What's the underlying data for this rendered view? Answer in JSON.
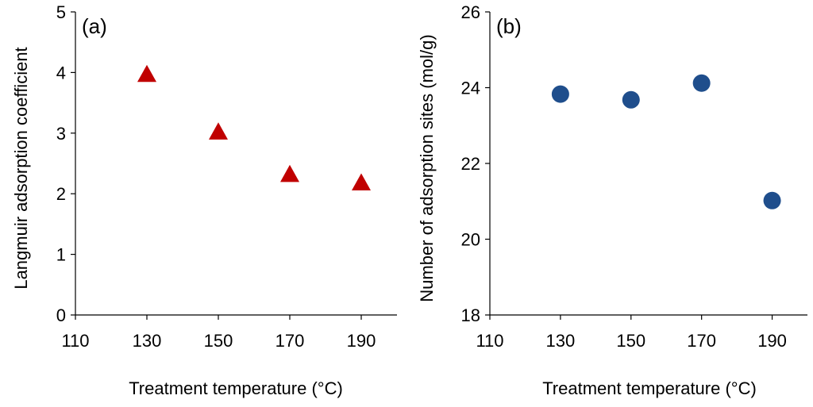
{
  "chart_data": [
    {
      "type": "scatter",
      "panel_label": "(a)",
      "xlabel": "Treatment temperature (°C)",
      "ylabel": "Langmuir adsorption coefficient",
      "xlim": [
        110,
        200
      ],
      "ylim": [
        0,
        5
      ],
      "xticks": [
        110,
        130,
        150,
        170,
        190
      ],
      "yticks": [
        0,
        1,
        2,
        3,
        4,
        5
      ],
      "marker": "triangle",
      "color": "#c00000",
      "x": [
        130,
        150,
        170,
        190
      ],
      "y": [
        3.97,
        3.02,
        2.32,
        2.18
      ]
    },
    {
      "type": "scatter",
      "panel_label": "(b)",
      "xlabel": "Treatment temperature (°C)",
      "ylabel": "Number of adsorption sites  (mol/g)",
      "xlim": [
        110,
        200
      ],
      "ylim": [
        18,
        26
      ],
      "xticks": [
        110,
        130,
        150,
        170,
        190
      ],
      "yticks": [
        18,
        20,
        22,
        24,
        26
      ],
      "marker": "circle",
      "color": "#1f4e8c",
      "x": [
        130,
        150,
        170,
        190
      ],
      "y": [
        23.83,
        23.68,
        24.12,
        21.02
      ]
    }
  ]
}
